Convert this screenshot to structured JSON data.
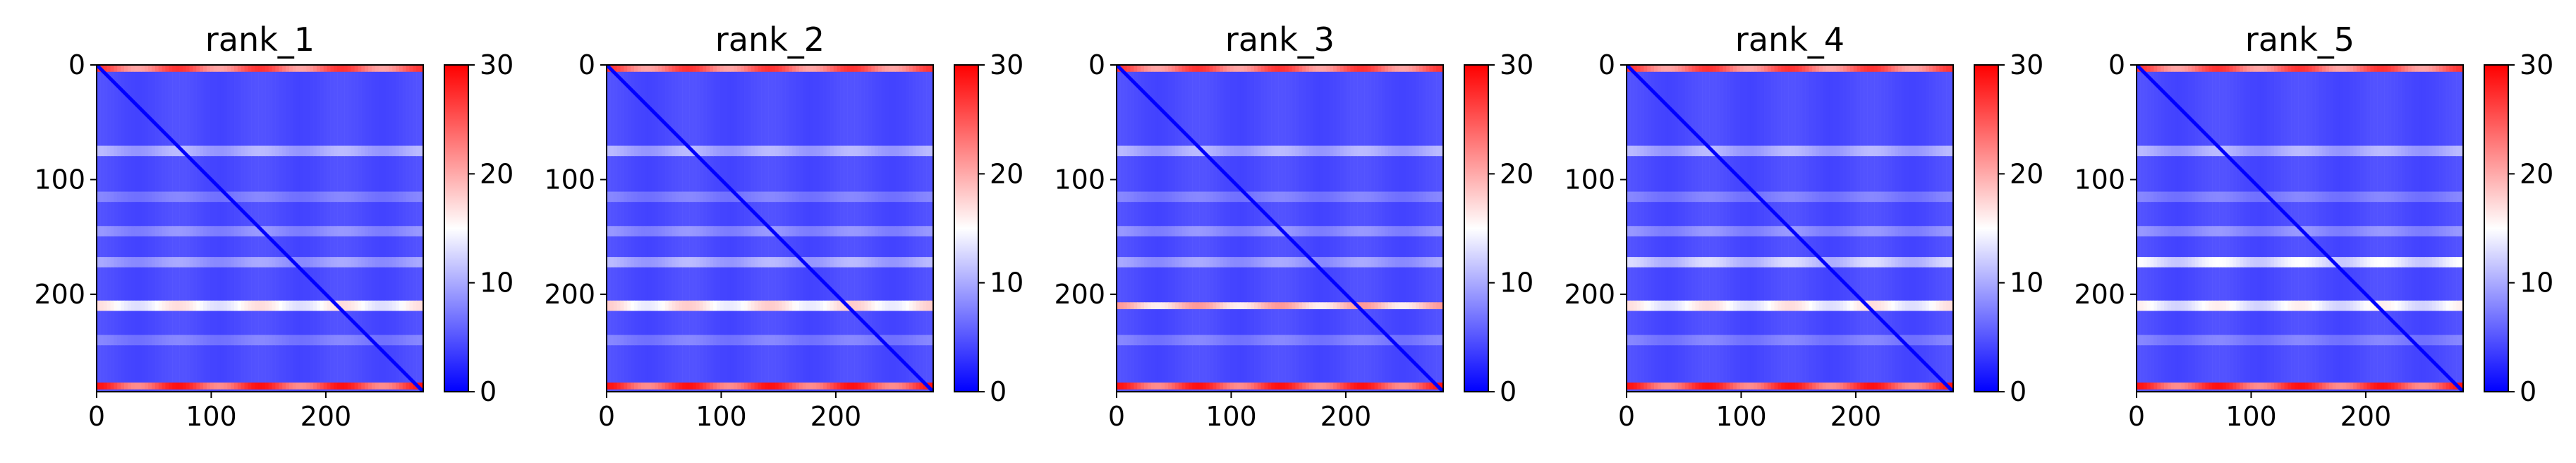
{
  "chart_data": [
    {
      "type": "heatmap",
      "title": "rank_1",
      "colormap": "bwr",
      "colorbar": {
        "min": 0,
        "max": 30,
        "ticks": [
          0,
          10,
          20,
          30
        ]
      },
      "xlim": [
        0,
        285
      ],
      "ylim": [
        285,
        0
      ],
      "xticks": [
        0,
        100,
        200
      ],
      "yticks": [
        0,
        100,
        200
      ],
      "bands": [
        {
          "y": 3,
          "value": 27
        },
        {
          "y": 75,
          "value": 11
        },
        {
          "y": 115,
          "value": 8
        },
        {
          "y": 145,
          "value": 9
        },
        {
          "y": 172,
          "value": 10
        },
        {
          "y": 210,
          "value": 17
        },
        {
          "y": 240,
          "value": 8
        },
        {
          "y": 280,
          "value": 29
        }
      ]
    },
    {
      "type": "heatmap",
      "title": "rank_2",
      "colormap": "bwr",
      "colorbar": {
        "min": 0,
        "max": 30,
        "ticks": [
          0,
          10,
          20,
          30
        ]
      },
      "xlim": [
        0,
        285
      ],
      "ylim": [
        285,
        0
      ],
      "xticks": [
        0,
        100,
        200
      ],
      "yticks": [
        0,
        100,
        200
      ],
      "bands": [
        {
          "y": 3,
          "value": 27
        },
        {
          "y": 75,
          "value": 11
        },
        {
          "y": 115,
          "value": 8
        },
        {
          "y": 145,
          "value": 9
        },
        {
          "y": 172,
          "value": 11
        },
        {
          "y": 210,
          "value": 18
        },
        {
          "y": 240,
          "value": 8
        },
        {
          "y": 280,
          "value": 29
        }
      ]
    },
    {
      "type": "heatmap",
      "title": "rank_3",
      "colormap": "bwr",
      "colorbar": {
        "min": 0,
        "max": 30,
        "ticks": [
          0,
          10,
          20,
          30
        ]
      },
      "xlim": [
        0,
        285
      ],
      "ylim": [
        285,
        0
      ],
      "xticks": [
        0,
        100,
        200
      ],
      "yticks": [
        0,
        100,
        200
      ],
      "bands": [
        {
          "y": 3,
          "value": 27
        },
        {
          "y": 75,
          "value": 11
        },
        {
          "y": 115,
          "value": 8
        },
        {
          "y": 145,
          "value": 9
        },
        {
          "y": 172,
          "value": 10
        },
        {
          "y": 210,
          "value": 21
        },
        {
          "y": 240,
          "value": 8
        },
        {
          "y": 280,
          "value": 29
        }
      ]
    },
    {
      "type": "heatmap",
      "title": "rank_4",
      "colormap": "bwr",
      "colorbar": {
        "min": 0,
        "max": 30,
        "ticks": [
          0,
          10,
          20,
          30
        ]
      },
      "xlim": [
        0,
        285
      ],
      "ylim": [
        285,
        0
      ],
      "xticks": [
        0,
        100,
        200
      ],
      "yticks": [
        0,
        100,
        200
      ],
      "bands": [
        {
          "y": 3,
          "value": 27
        },
        {
          "y": 75,
          "value": 11
        },
        {
          "y": 115,
          "value": 8
        },
        {
          "y": 145,
          "value": 9
        },
        {
          "y": 172,
          "value": 13
        },
        {
          "y": 210,
          "value": 17
        },
        {
          "y": 240,
          "value": 8
        },
        {
          "y": 280,
          "value": 29
        }
      ]
    },
    {
      "type": "heatmap",
      "title": "rank_5",
      "colormap": "bwr",
      "colorbar": {
        "min": 0,
        "max": 30,
        "ticks": [
          0,
          10,
          20,
          30
        ]
      },
      "xlim": [
        0,
        285
      ],
      "ylim": [
        285,
        0
      ],
      "xticks": [
        0,
        100,
        200
      ],
      "yticks": [
        0,
        100,
        200
      ],
      "bands": [
        {
          "y": 3,
          "value": 27
        },
        {
          "y": 75,
          "value": 11
        },
        {
          "y": 115,
          "value": 8
        },
        {
          "y": 145,
          "value": 9
        },
        {
          "y": 172,
          "value": 15
        },
        {
          "y": 210,
          "value": 16
        },
        {
          "y": 240,
          "value": 8
        },
        {
          "y": 280,
          "value": 29
        }
      ]
    }
  ]
}
